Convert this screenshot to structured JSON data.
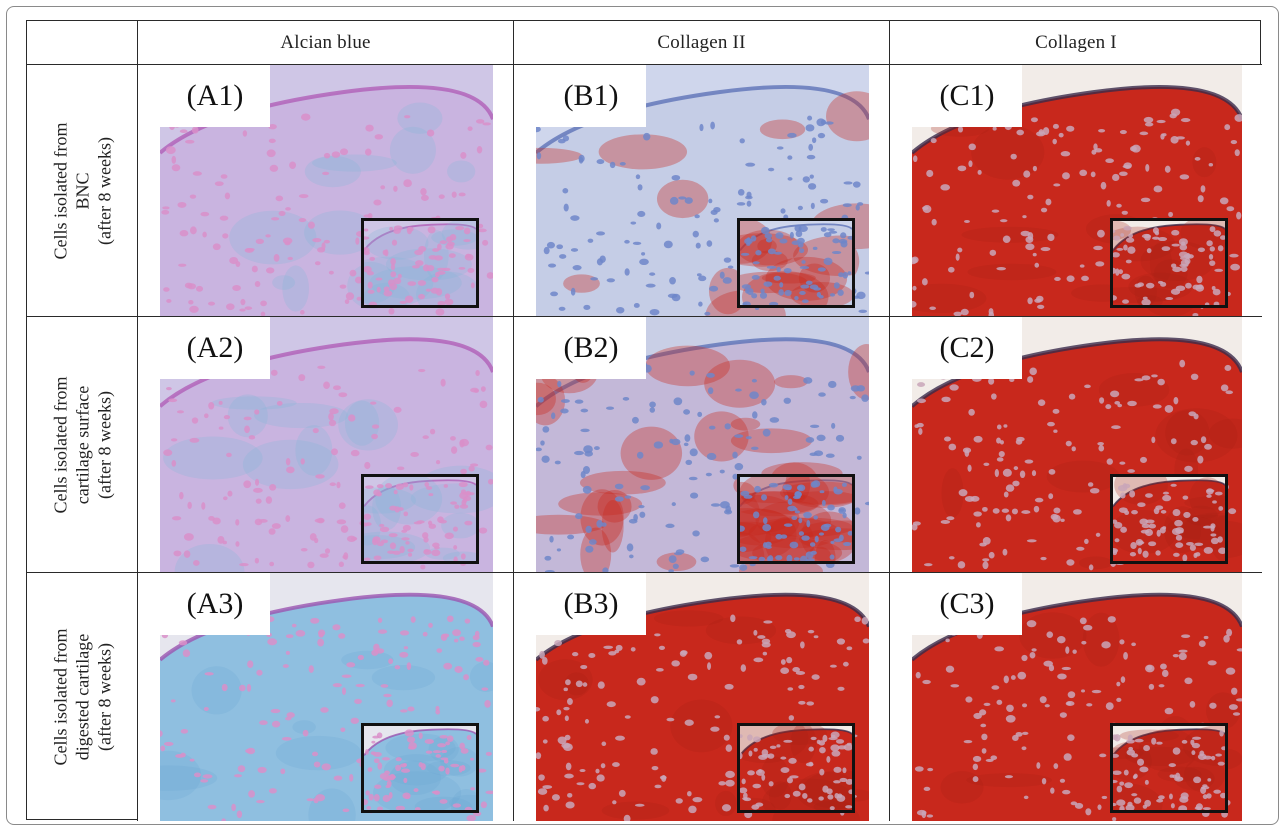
{
  "columns": [
    "Alcian blue",
    "Collagen II",
    "Collagen I"
  ],
  "rows": [
    {
      "lines": [
        "Cells isolated from",
        "BNC",
        "(after 8 weeks)"
      ]
    },
    {
      "lines": [
        "Cells isolated from",
        "cartilage surface",
        "(after 8 weeks)"
      ]
    },
    {
      "lines": [
        "Cells isolated from",
        "digested cartilage",
        "(after 8 weeks)"
      ]
    }
  ],
  "panels": [
    [
      "(A1)",
      "(B1)",
      "(C1)"
    ],
    [
      "(A2)",
      "(B2)",
      "(C2)"
    ],
    [
      "(A3)",
      "(B3)",
      "(C3)"
    ]
  ],
  "stain_colors": {
    "alcian_pink": "#d98fc9",
    "alcian_blue": "#7fb7d6",
    "hematoxylin_blue": "#6f86c9",
    "collagen_red": "#c8281c"
  }
}
